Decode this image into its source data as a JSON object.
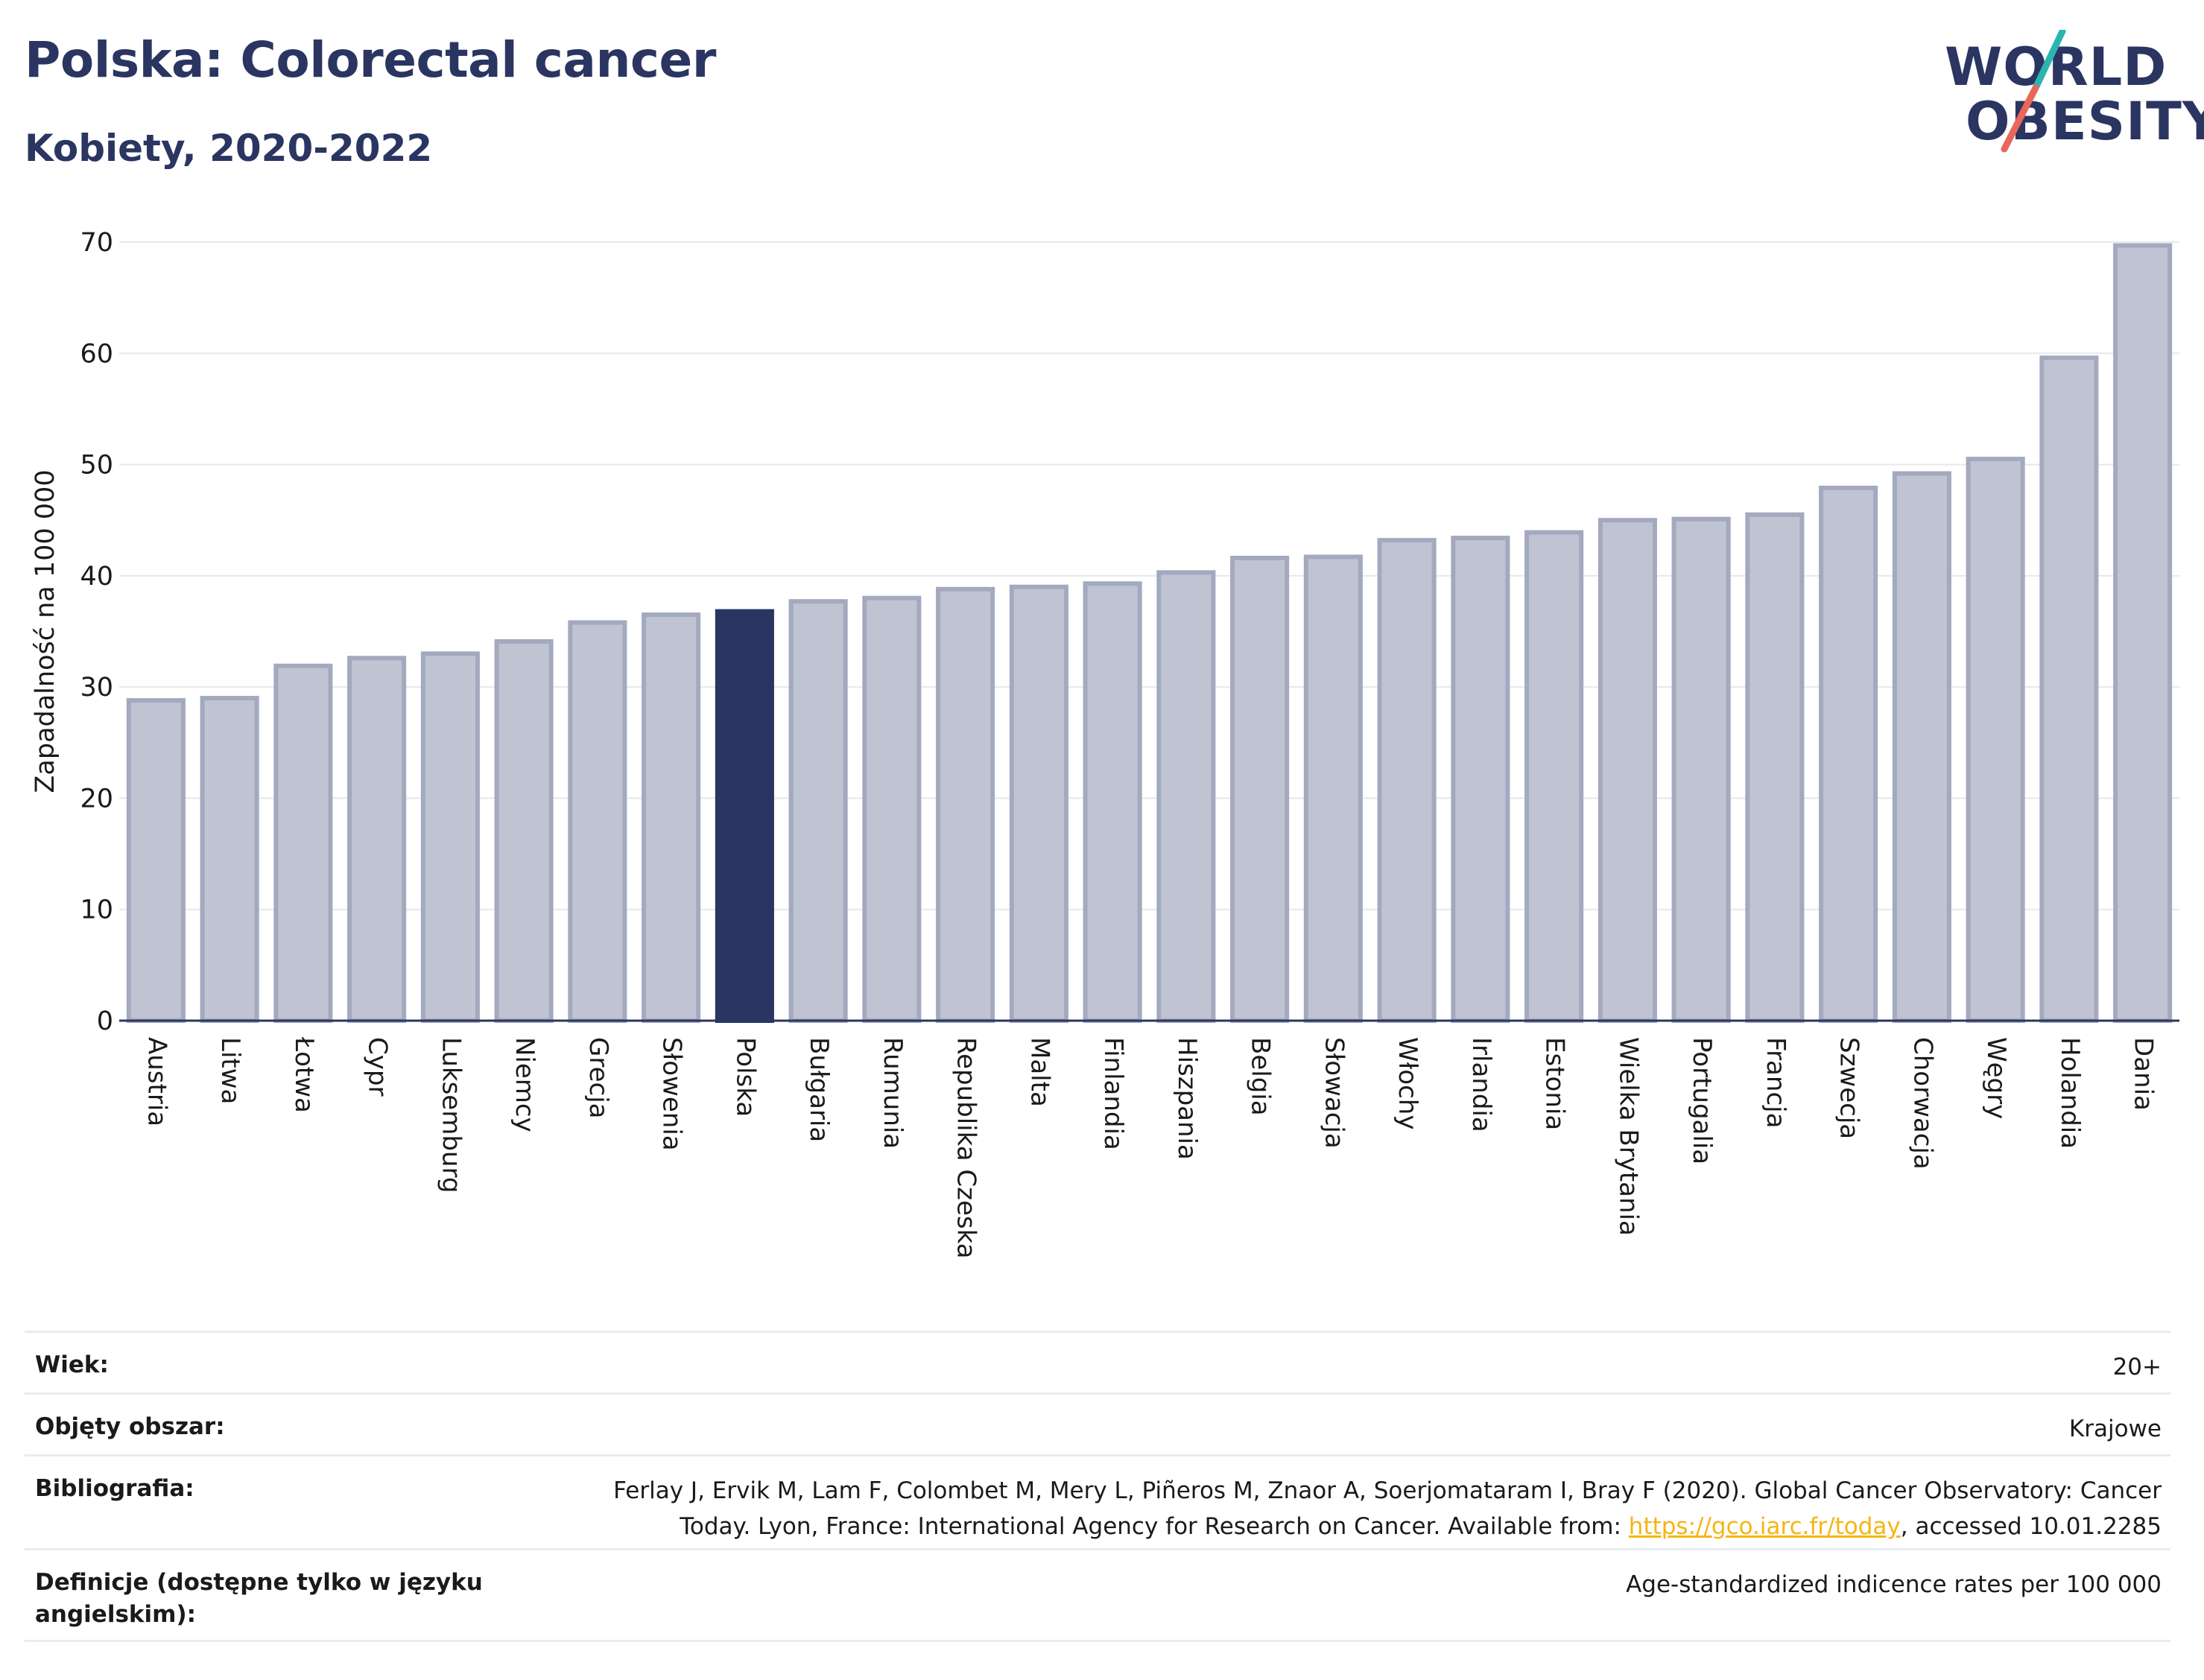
{
  "header": {
    "title": "Polska: Colorectal cancer",
    "subtitle": "Kobiety, 2020-2022"
  },
  "logo": {
    "line1": "WORLD",
    "line2": "OBESITY",
    "colors": {
      "text": "#2a3561",
      "slash_teal": "#2bb5b0",
      "slash_red": "#e8675a"
    }
  },
  "chart_data": {
    "type": "bar",
    "ylabel": "Zapadalność na 100 000",
    "xlabel": "",
    "ylim": [
      0,
      70
    ],
    "yticks": [
      0,
      10,
      20,
      30,
      40,
      50,
      60,
      70
    ],
    "grid": true,
    "highlight": "Polska",
    "colors": {
      "bar": "#c0c4d2",
      "bar_edge": "#a3a9bf",
      "highlight": "#2a3561"
    },
    "categories": [
      "Austria",
      "Litwa",
      "Łotwa",
      "Cypr",
      "Luksemburg",
      "Niemcy",
      "Grecja",
      "Słowenia",
      "Polska",
      "Bułgaria",
      "Rumunia",
      "Republika Czeska",
      "Malta",
      "Finlandia",
      "Hiszpania",
      "Belgia",
      "Słowacja",
      "Włochy",
      "Irlandia",
      "Estonia",
      "Wielka Brytania",
      "Portugalia",
      "Francja",
      "Szwecja",
      "Chorwacja",
      "Węgry",
      "Holandia",
      "Dania"
    ],
    "values": [
      28.8,
      29.0,
      31.9,
      32.6,
      33.0,
      34.1,
      35.8,
      36.5,
      36.8,
      37.7,
      38.0,
      38.8,
      39.0,
      39.3,
      40.3,
      41.6,
      41.7,
      43.2,
      43.4,
      43.9,
      45.0,
      45.1,
      45.5,
      47.9,
      49.2,
      50.5,
      59.6,
      69.7
    ]
  },
  "info": {
    "rows": [
      {
        "label": "Wiek:",
        "value": "20+"
      },
      {
        "label": "Objęty obszar:",
        "value": "Krajowe"
      },
      {
        "label": "Bibliografia:",
        "value_line1": "Ferlay J, Ervik M, Lam F, Colombet M, Mery L, Piñeros M, Znaor A, Soerjomataram I, Bray F (2020). Global Cancer Observatory: Cancer",
        "value_line2_pre": "Today. Lyon, France: International Agency for Research on Cancer. Available from: ",
        "value_link": "https://gco.iarc.fr/today",
        "value_line2_post": ", accessed 10.01.2285"
      },
      {
        "label": "Definicje (dostępne tylko w języku angielskim):",
        "value": "Age-standardized indicence rates per 100 000"
      }
    ]
  }
}
